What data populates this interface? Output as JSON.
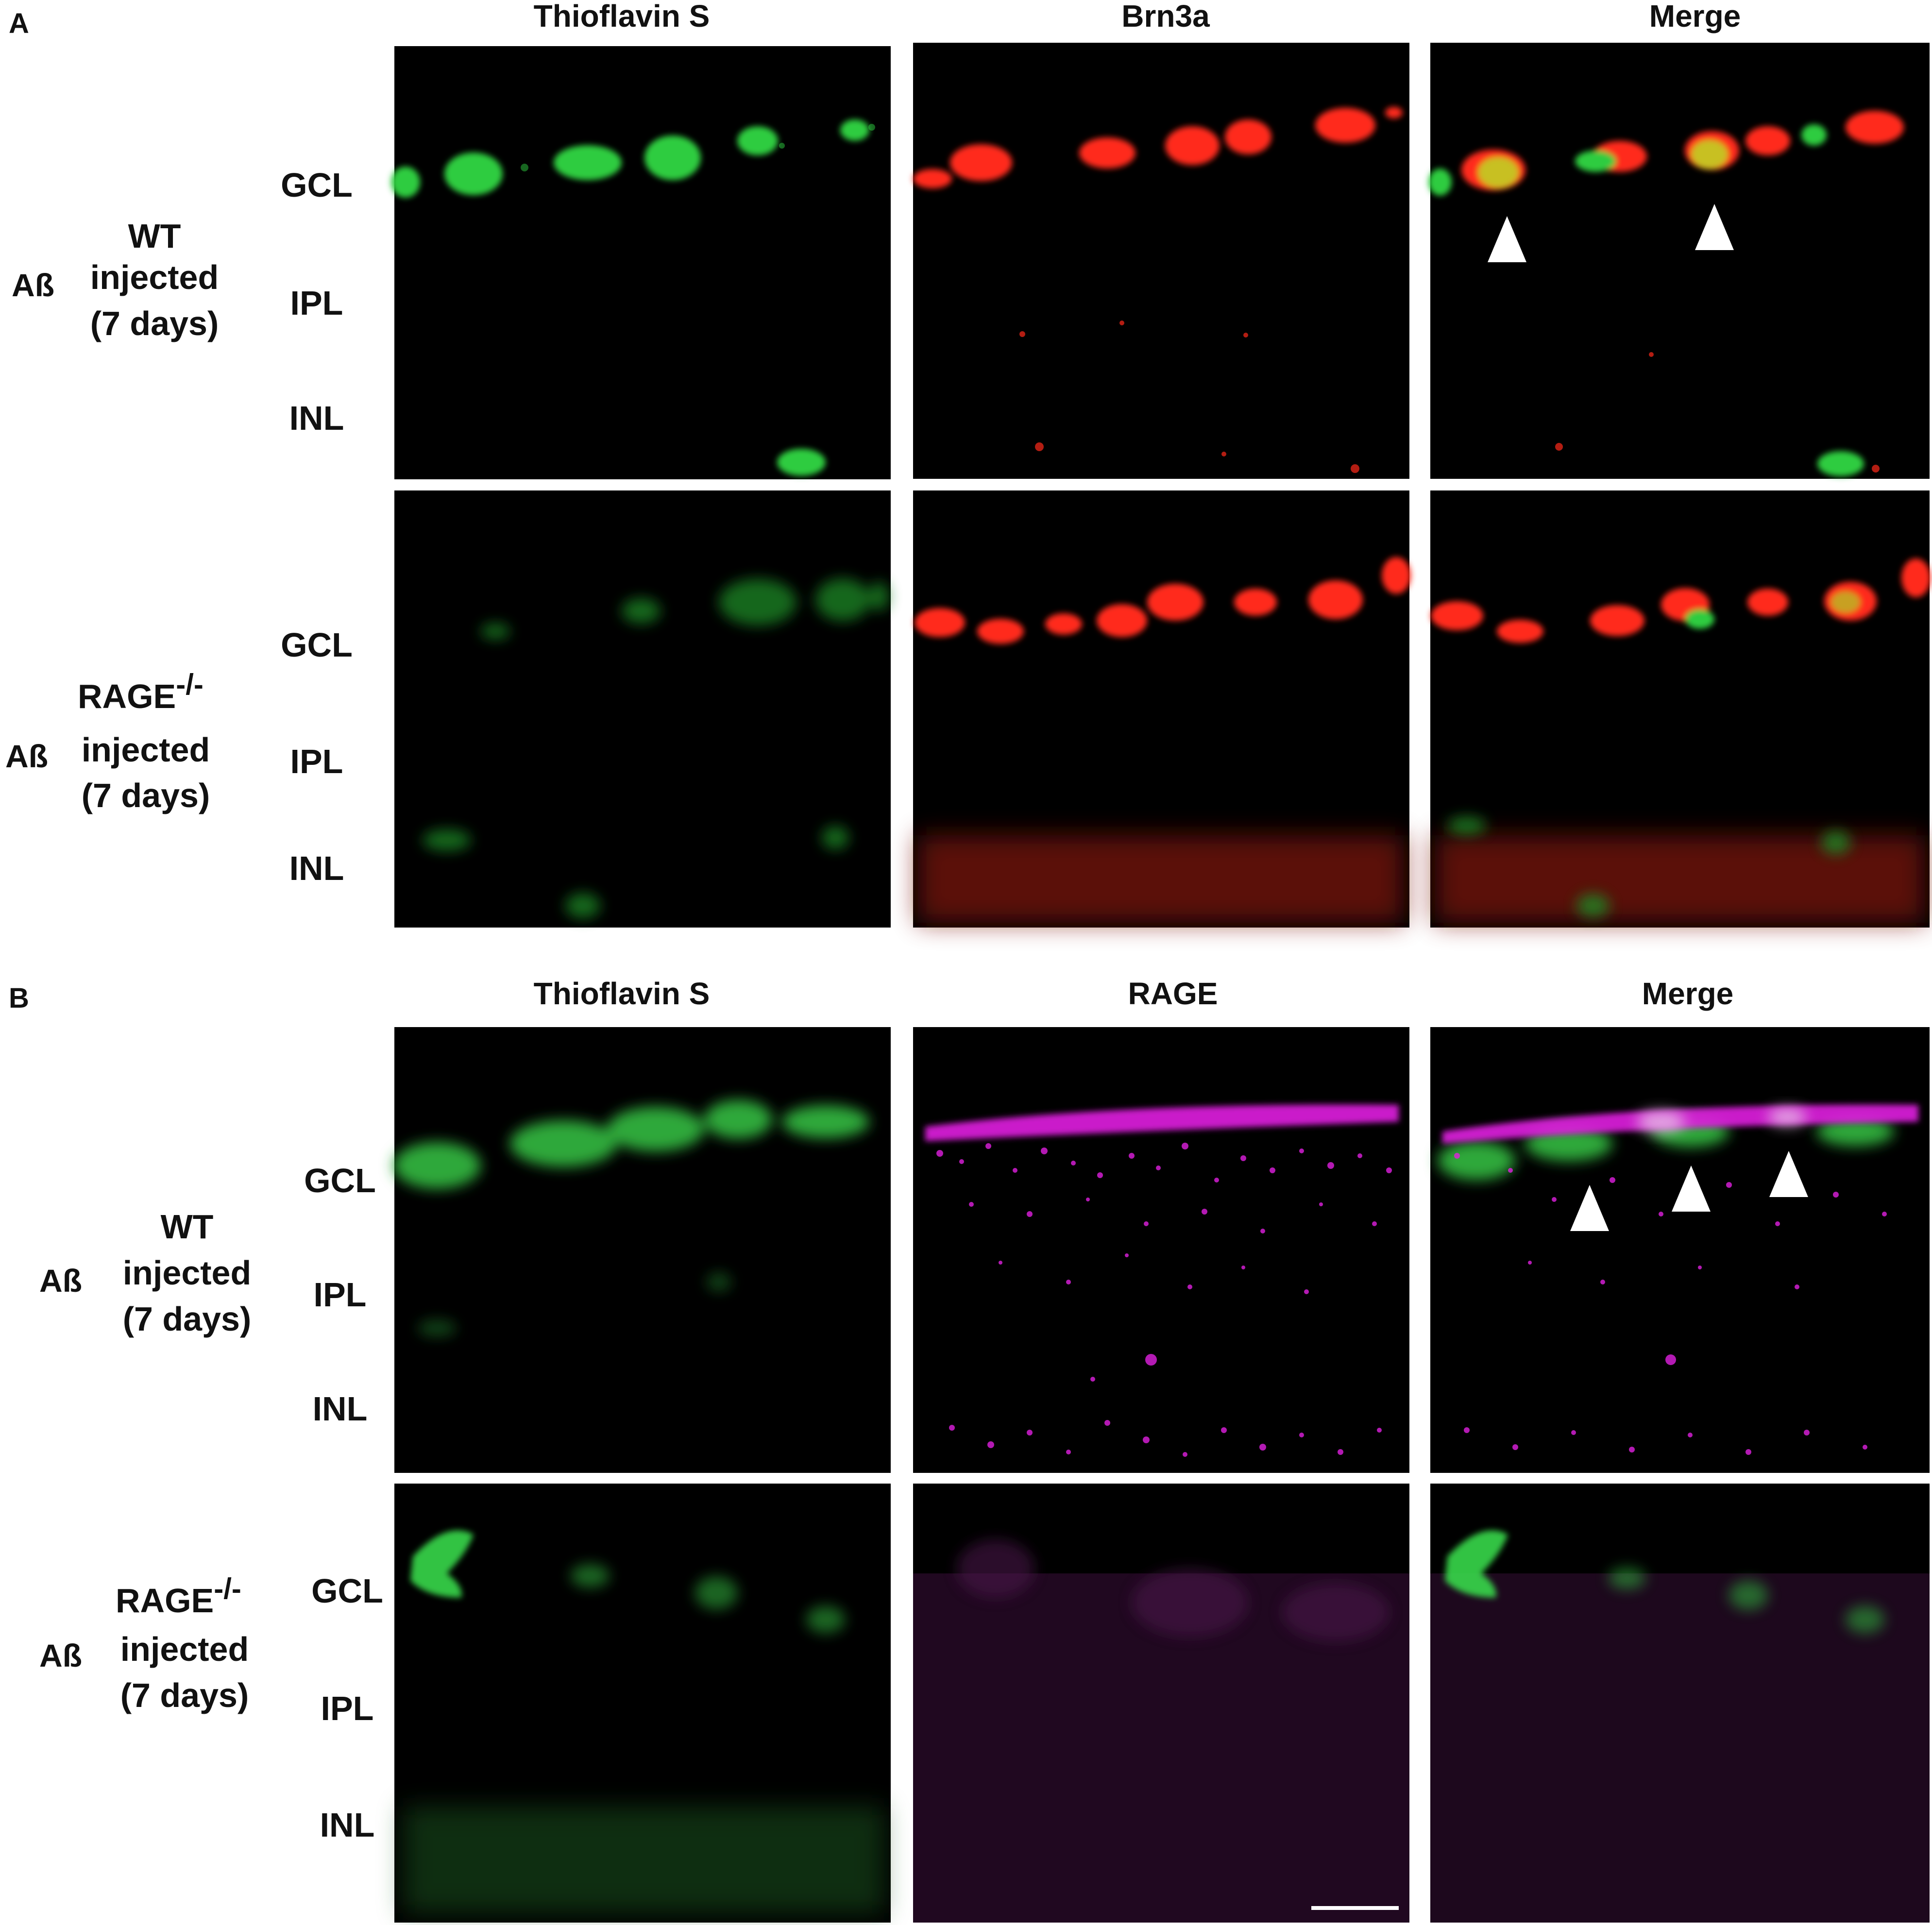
{
  "panels": [
    {
      "letter": "A",
      "columns": [
        "Thioflavin S",
        "Brn3a",
        "Merge"
      ],
      "rows": [
        {
          "prefix": "Aß",
          "genotype": "WT",
          "genotype_sup": "",
          "line2": "injected",
          "line3": "(7 days)",
          "layers": [
            "GCL",
            "IPL",
            "INL"
          ]
        },
        {
          "prefix": "Aß",
          "genotype": "RAGE",
          "genotype_sup": "-/-",
          "line2": "injected",
          "line3": "(7 days)",
          "layers": [
            "GCL",
            "IPL",
            "INL"
          ]
        }
      ]
    },
    {
      "letter": "B",
      "columns": [
        "Thioflavin S",
        "RAGE",
        "Merge"
      ],
      "rows": [
        {
          "prefix": "Aß",
          "genotype": "WT",
          "genotype_sup": "",
          "line2": "injected",
          "line3": "(7 days)",
          "layers": [
            "GCL",
            "IPL",
            "INL"
          ]
        },
        {
          "prefix": "Aß",
          "genotype": "RAGE",
          "genotype_sup": "-/-",
          "line2": "injected",
          "line3": "(7 days)",
          "layers": [
            "GCL",
            "IPL",
            "INL"
          ]
        }
      ]
    }
  ],
  "colors": {
    "thioflavin": "#2ecc40",
    "brn3a": "#ff2a1a",
    "rage": "#e020e0",
    "background": "#000000",
    "arrowhead": "#ffffff",
    "scale_bar": "#ffffff"
  }
}
